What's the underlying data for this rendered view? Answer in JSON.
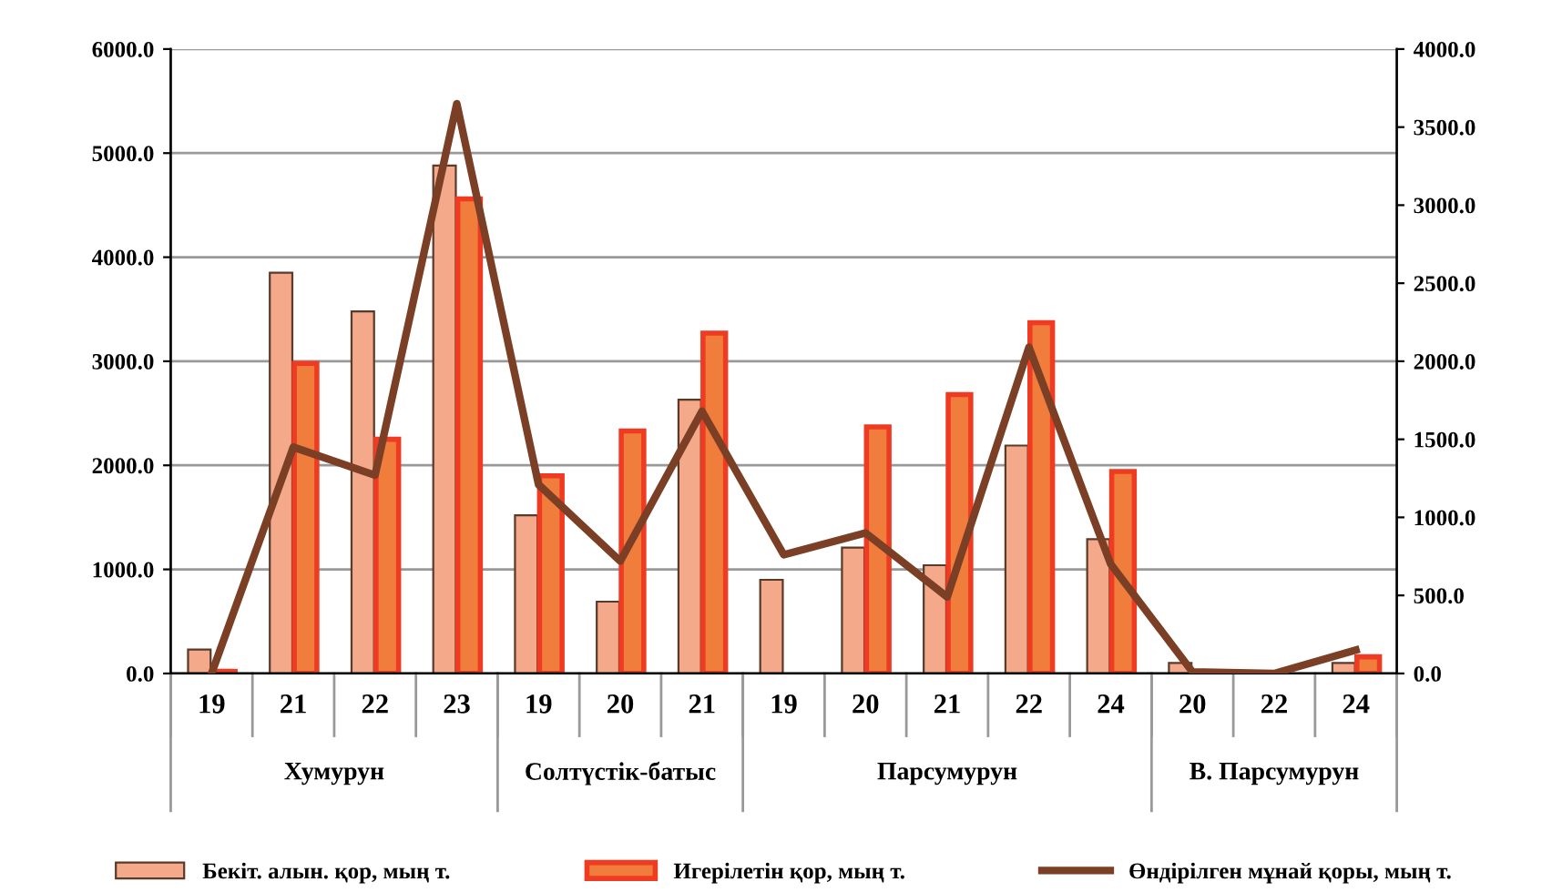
{
  "chart_data": {
    "type": "bar",
    "categories": [
      "19",
      "21",
      "22",
      "23",
      "19",
      "20",
      "21",
      "19",
      "20",
      "21",
      "22",
      "24",
      "20",
      "22",
      "24"
    ],
    "series": [
      {
        "name": "Бекіт. алын. қор, мың т.",
        "color": "#f4a98a",
        "values": [
          230,
          3850,
          3480,
          4880,
          1520,
          690,
          2630,
          900,
          1210,
          1040,
          2190,
          1290,
          100,
          null,
          100
        ]
      },
      {
        "name": "Игерілетін қор, мың т.",
        "color": "#ee3b22",
        "values": [
          20,
          2980,
          2250,
          4560,
          1900,
          2330,
          3270,
          null,
          2370,
          2680,
          3370,
          1940,
          null,
          null,
          160
        ]
      },
      {
        "name": "Өндірілген мұнай қоры, мың т.",
        "color": "#7b3f25",
        "type": "line",
        "axis": "y2",
        "values": [
          0,
          1450,
          1270,
          3650,
          1210,
          720,
          1680,
          760,
          900,
          490,
          2090,
          700,
          10,
          0,
          150
        ]
      }
    ],
    "ylim": [
      0,
      6000
    ],
    "yticks": [
      {
        "value": 0,
        "label": "0.0"
      },
      {
        "value": 1000,
        "label": "1000.0"
      },
      {
        "value": 2000,
        "label": "2000.0"
      },
      {
        "value": 3000,
        "label": "3000.0"
      },
      {
        "value": 4000,
        "label": "4000.0"
      },
      {
        "value": 5000,
        "label": "5000.0"
      },
      {
        "value": 6000,
        "label": "6000.0"
      }
    ],
    "y2lim": [
      0,
      4000
    ],
    "y2ticks": [
      {
        "value": 0,
        "label": "0.0"
      },
      {
        "value": 500,
        "label": "500.0"
      },
      {
        "value": 1000,
        "label": "1000.0"
      },
      {
        "value": 1500,
        "label": "1500.0"
      },
      {
        "value": 2000,
        "label": "2000.0"
      },
      {
        "value": 2500,
        "label": "2500.0"
      },
      {
        "value": 3000,
        "label": "3000.0"
      },
      {
        "value": 3500,
        "label": "3500.0"
      },
      {
        "value": 4000,
        "label": "4000.0"
      }
    ],
    "annotations": [
      "Хумурун",
      "Солтүстік-батыс",
      "Парсумурун",
      "В. Парсумурун"
    ],
    "grid": "y",
    "legend": "bottom",
    "marker": "none",
    "line_style": "solid"
  }
}
